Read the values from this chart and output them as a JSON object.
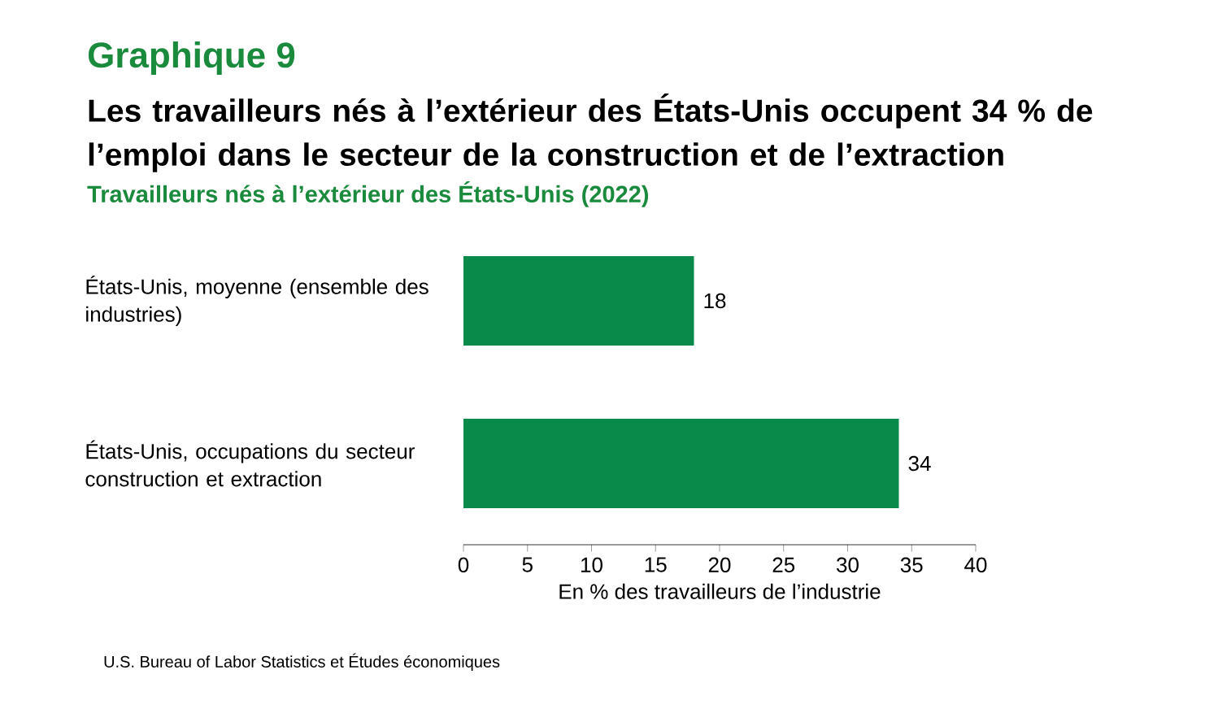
{
  "chart_data": {
    "type": "bar",
    "orientation": "horizontal",
    "title": "Les travailleurs nés à l’extérieur des États-Unis occupent 34 % de l’emploi dans le secteur de la construction et de l’extraction",
    "subtitle": "Travailleurs nés à l’extérieur des États-Unis (2022)",
    "annotations": [
      "Graphique 9",
      "U.S. Bureau of Labor Statistics et Études économiques"
    ],
    "categories": [
      "États-Unis, moyenne (ensemble des industries)",
      "États-Unis, occupations du secteur construction et extraction"
    ],
    "values": [
      18,
      34
    ],
    "color": "#0a8a4a",
    "xlabel": "En % des travailleurs de l’industrie",
    "xlim": [
      0,
      40
    ],
    "xticks": [
      0,
      5,
      10,
      15,
      20,
      25,
      30,
      35,
      40
    ],
    "data_labels": true
  }
}
